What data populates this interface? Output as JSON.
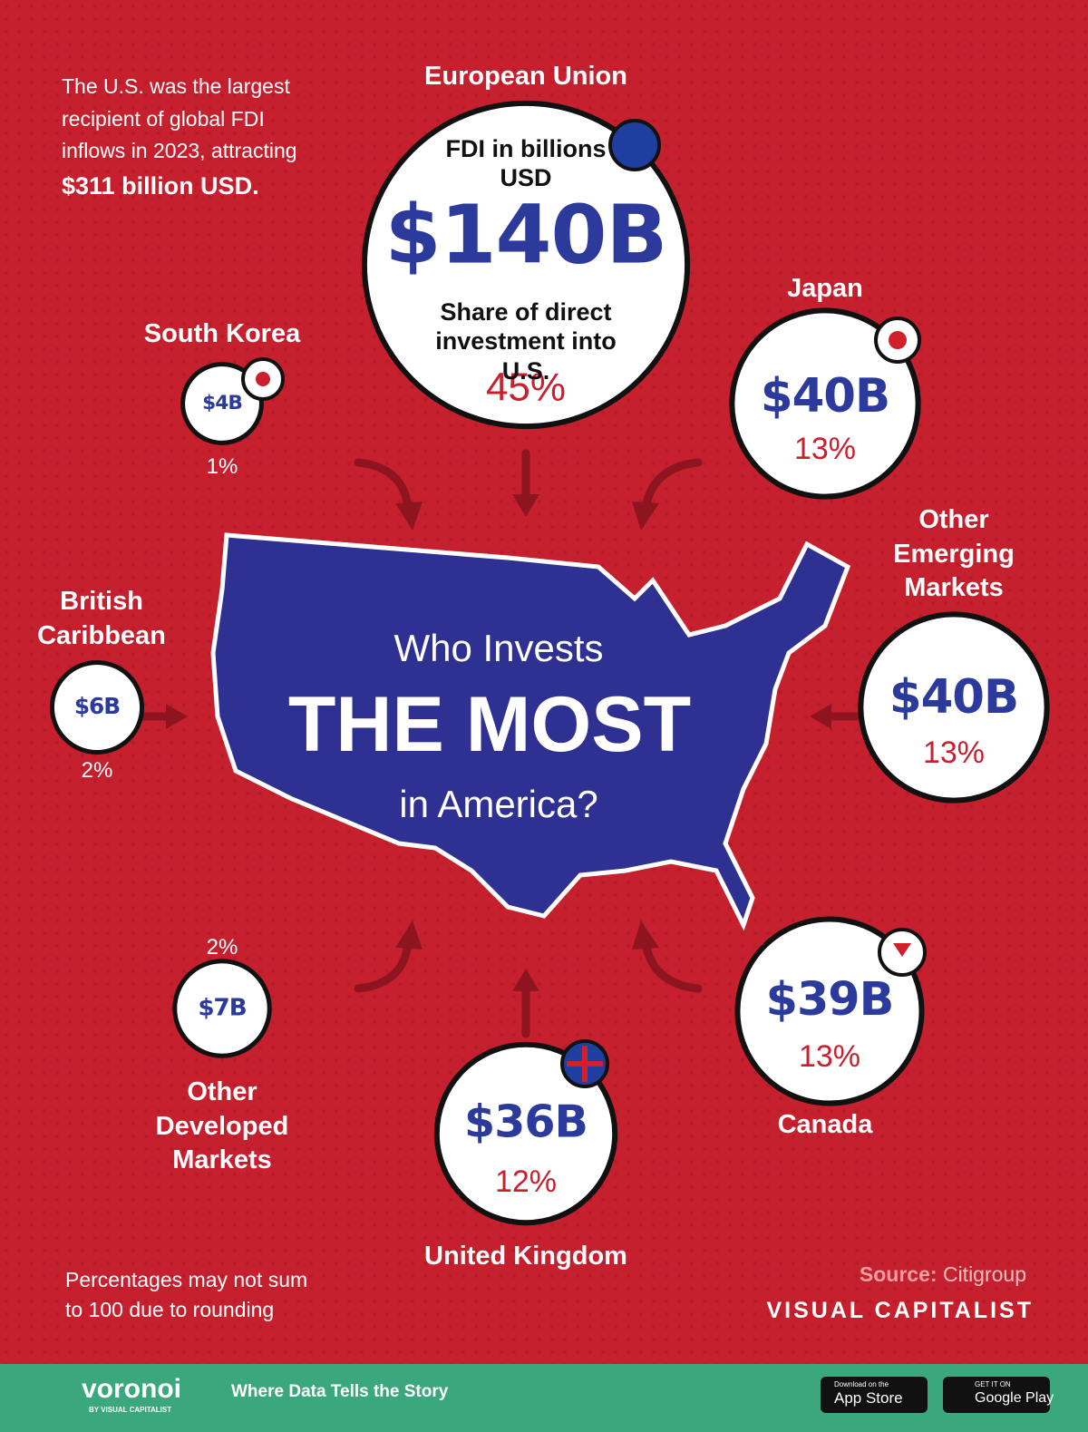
{
  "chart_data": {
    "type": "bubble",
    "title_lines": [
      "Who Invests",
      "THE MOST",
      "in America?"
    ],
    "intro": "The U.S. was the largest recipient of global FDI inflows in 2023, attracting",
    "intro_highlight": "$311 billion USD.",
    "value_caption": "FDI in billions USD",
    "share_caption": "Share of direct investment into U.S.",
    "categories": [
      "European Union",
      "Japan",
      "Other Emerging Markets",
      "Canada",
      "United Kingdom",
      "Other Developed Markets",
      "British Caribbean",
      "South Korea"
    ],
    "values": [
      140,
      40,
      40,
      39,
      36,
      7,
      6,
      4
    ],
    "value_labels": [
      "$140B",
      "$40B",
      "$40B",
      "$39B",
      "$36B",
      "$7B",
      "$6B",
      "$4B"
    ],
    "share_labels": [
      "45%",
      "13%",
      "13%",
      "13%",
      "12%",
      "2%",
      "2%",
      "1%"
    ],
    "value_color": "#2b3a9b",
    "share_color": "#c8202f",
    "note": "Percentages may not sum to 100 due to rounding",
    "source_label": "Source:",
    "source": "Citigroup",
    "brand": "VISUAL CAPITALIST"
  },
  "footer": {
    "logo": "voronoi",
    "logo_sub": "BY VISUAL CAPITALIST",
    "tagline": "Where Data Tells the Story",
    "app_store_small": "Download on the",
    "app_store": "App Store",
    "google_small": "GET IT ON",
    "google": "Google Play"
  }
}
